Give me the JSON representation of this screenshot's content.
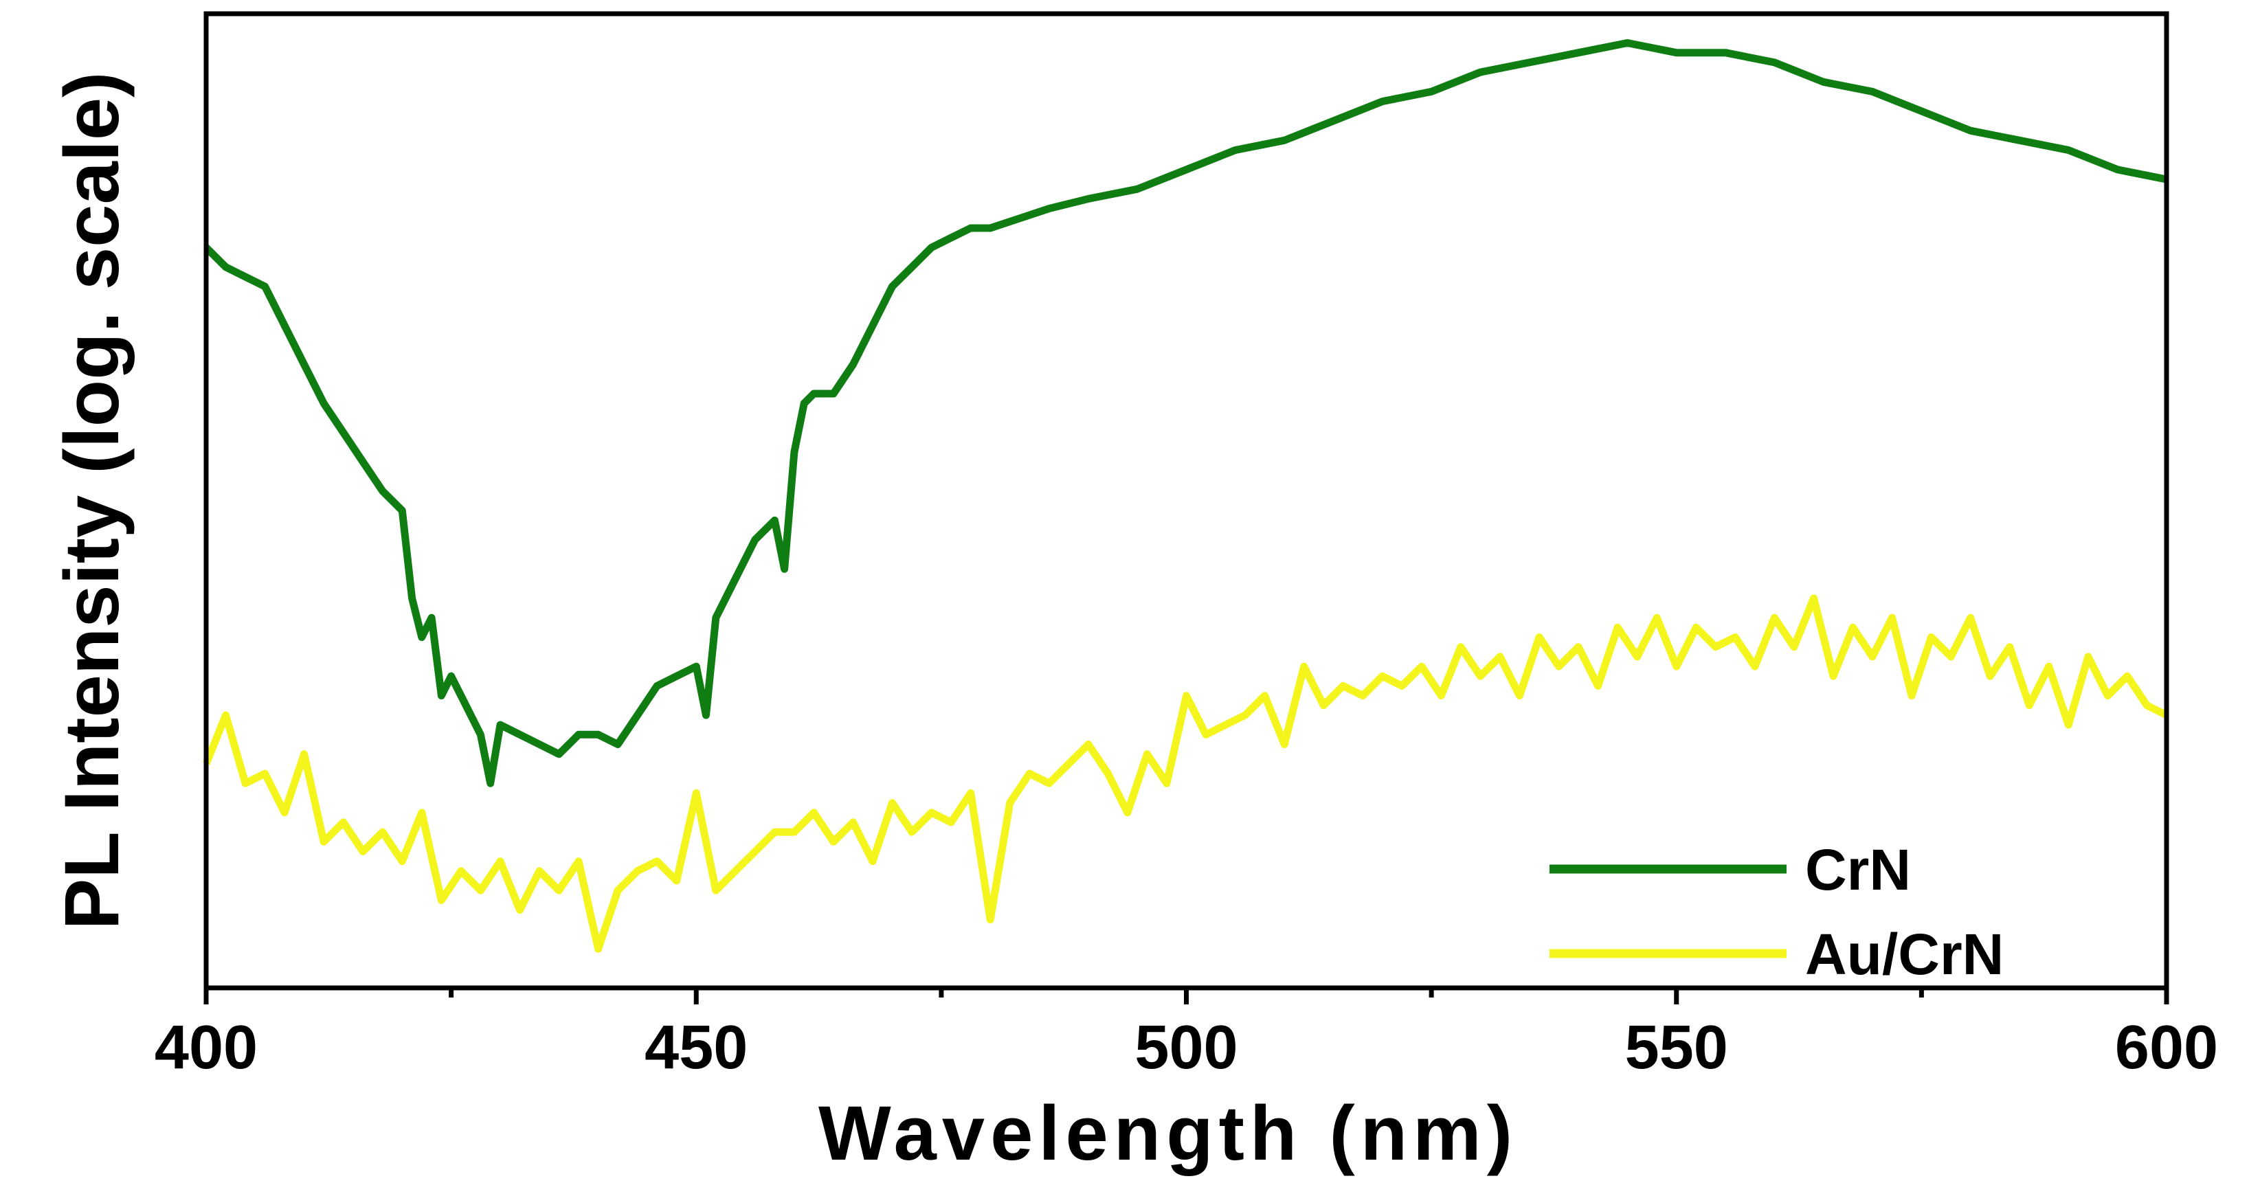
{
  "chart_data": {
    "type": "line",
    "title": "",
    "xlabel": "Wavelength (nm)",
    "ylabel": "PL Intensity (log. scale)",
    "xlim": [
      400,
      600
    ],
    "ylim": [
      0,
      1
    ],
    "y_tick_labels_shown": false,
    "x_ticks": [
      400,
      450,
      500,
      550,
      600
    ],
    "x_tick_labels": [
      "400",
      "450",
      "500",
      "550",
      "600"
    ],
    "x_minor_ticks": [
      425,
      475,
      525,
      575
    ],
    "legend": {
      "position": "bottom-right",
      "entries": [
        "CrN",
        "Au/CrN"
      ]
    },
    "series": [
      {
        "name": "CrN",
        "color": "#0f7d12",
        "x": [
          400,
          402,
          404,
          406,
          408,
          410,
          412,
          414,
          416,
          418,
          420,
          421,
          422,
          423,
          424,
          425,
          426,
          428,
          429,
          430,
          432,
          434,
          436,
          438,
          440,
          442,
          444,
          446,
          448,
          450,
          451,
          452,
          454,
          456,
          458,
          459,
          460,
          461,
          462,
          464,
          466,
          468,
          470,
          472,
          474,
          476,
          478,
          480,
          483,
          486,
          490,
          495,
          500,
          505,
          510,
          515,
          520,
          525,
          530,
          535,
          540,
          545,
          550,
          555,
          560,
          565,
          570,
          575,
          580,
          585,
          590,
          595,
          600
        ],
        "y": [
          0.76,
          0.74,
          0.73,
          0.72,
          0.68,
          0.64,
          0.6,
          0.57,
          0.54,
          0.51,
          0.49,
          0.4,
          0.36,
          0.38,
          0.3,
          0.32,
          0.3,
          0.26,
          0.21,
          0.27,
          0.26,
          0.25,
          0.24,
          0.26,
          0.26,
          0.25,
          0.28,
          0.31,
          0.32,
          0.33,
          0.28,
          0.38,
          0.42,
          0.46,
          0.48,
          0.43,
          0.55,
          0.6,
          0.61,
          0.61,
          0.64,
          0.68,
          0.72,
          0.74,
          0.76,
          0.77,
          0.78,
          0.78,
          0.79,
          0.8,
          0.81,
          0.82,
          0.84,
          0.86,
          0.87,
          0.89,
          0.91,
          0.92,
          0.94,
          0.95,
          0.96,
          0.97,
          0.96,
          0.96,
          0.95,
          0.93,
          0.92,
          0.9,
          0.88,
          0.87,
          0.86,
          0.84,
          0.83
        ]
      },
      {
        "name": "Au/CrN",
        "color": "#f5f51e",
        "x": [
          400,
          402,
          404,
          406,
          408,
          410,
          412,
          414,
          416,
          418,
          420,
          422,
          424,
          426,
          428,
          430,
          432,
          434,
          436,
          438,
          440,
          442,
          444,
          446,
          448,
          450,
          452,
          454,
          456,
          458,
          460,
          462,
          464,
          466,
          468,
          470,
          472,
          474,
          476,
          478,
          480,
          482,
          484,
          486,
          488,
          490,
          492,
          494,
          496,
          498,
          500,
          502,
          504,
          506,
          508,
          510,
          512,
          514,
          516,
          518,
          520,
          522,
          524,
          526,
          528,
          530,
          532,
          534,
          536,
          538,
          540,
          542,
          544,
          546,
          548,
          550,
          552,
          554,
          556,
          558,
          560,
          562,
          564,
          566,
          568,
          570,
          572,
          574,
          576,
          578,
          580,
          582,
          584,
          586,
          588,
          590,
          592,
          594,
          596,
          598,
          600
        ],
        "y": [
          0.23,
          0.28,
          0.21,
          0.22,
          0.18,
          0.24,
          0.15,
          0.17,
          0.14,
          0.16,
          0.13,
          0.18,
          0.09,
          0.12,
          0.1,
          0.13,
          0.08,
          0.12,
          0.1,
          0.13,
          0.04,
          0.1,
          0.12,
          0.13,
          0.11,
          0.2,
          0.1,
          0.12,
          0.14,
          0.16,
          0.16,
          0.18,
          0.15,
          0.17,
          0.13,
          0.19,
          0.16,
          0.18,
          0.17,
          0.2,
          0.07,
          0.19,
          0.22,
          0.21,
          0.23,
          0.25,
          0.22,
          0.18,
          0.24,
          0.21,
          0.3,
          0.26,
          0.27,
          0.28,
          0.3,
          0.25,
          0.33,
          0.29,
          0.31,
          0.3,
          0.32,
          0.31,
          0.33,
          0.3,
          0.35,
          0.32,
          0.34,
          0.3,
          0.36,
          0.33,
          0.35,
          0.31,
          0.37,
          0.34,
          0.38,
          0.33,
          0.37,
          0.35,
          0.36,
          0.33,
          0.38,
          0.35,
          0.4,
          0.32,
          0.37,
          0.34,
          0.38,
          0.3,
          0.36,
          0.34,
          0.38,
          0.32,
          0.35,
          0.29,
          0.33,
          0.27,
          0.34,
          0.3,
          0.32,
          0.29,
          0.28
        ]
      }
    ]
  }
}
